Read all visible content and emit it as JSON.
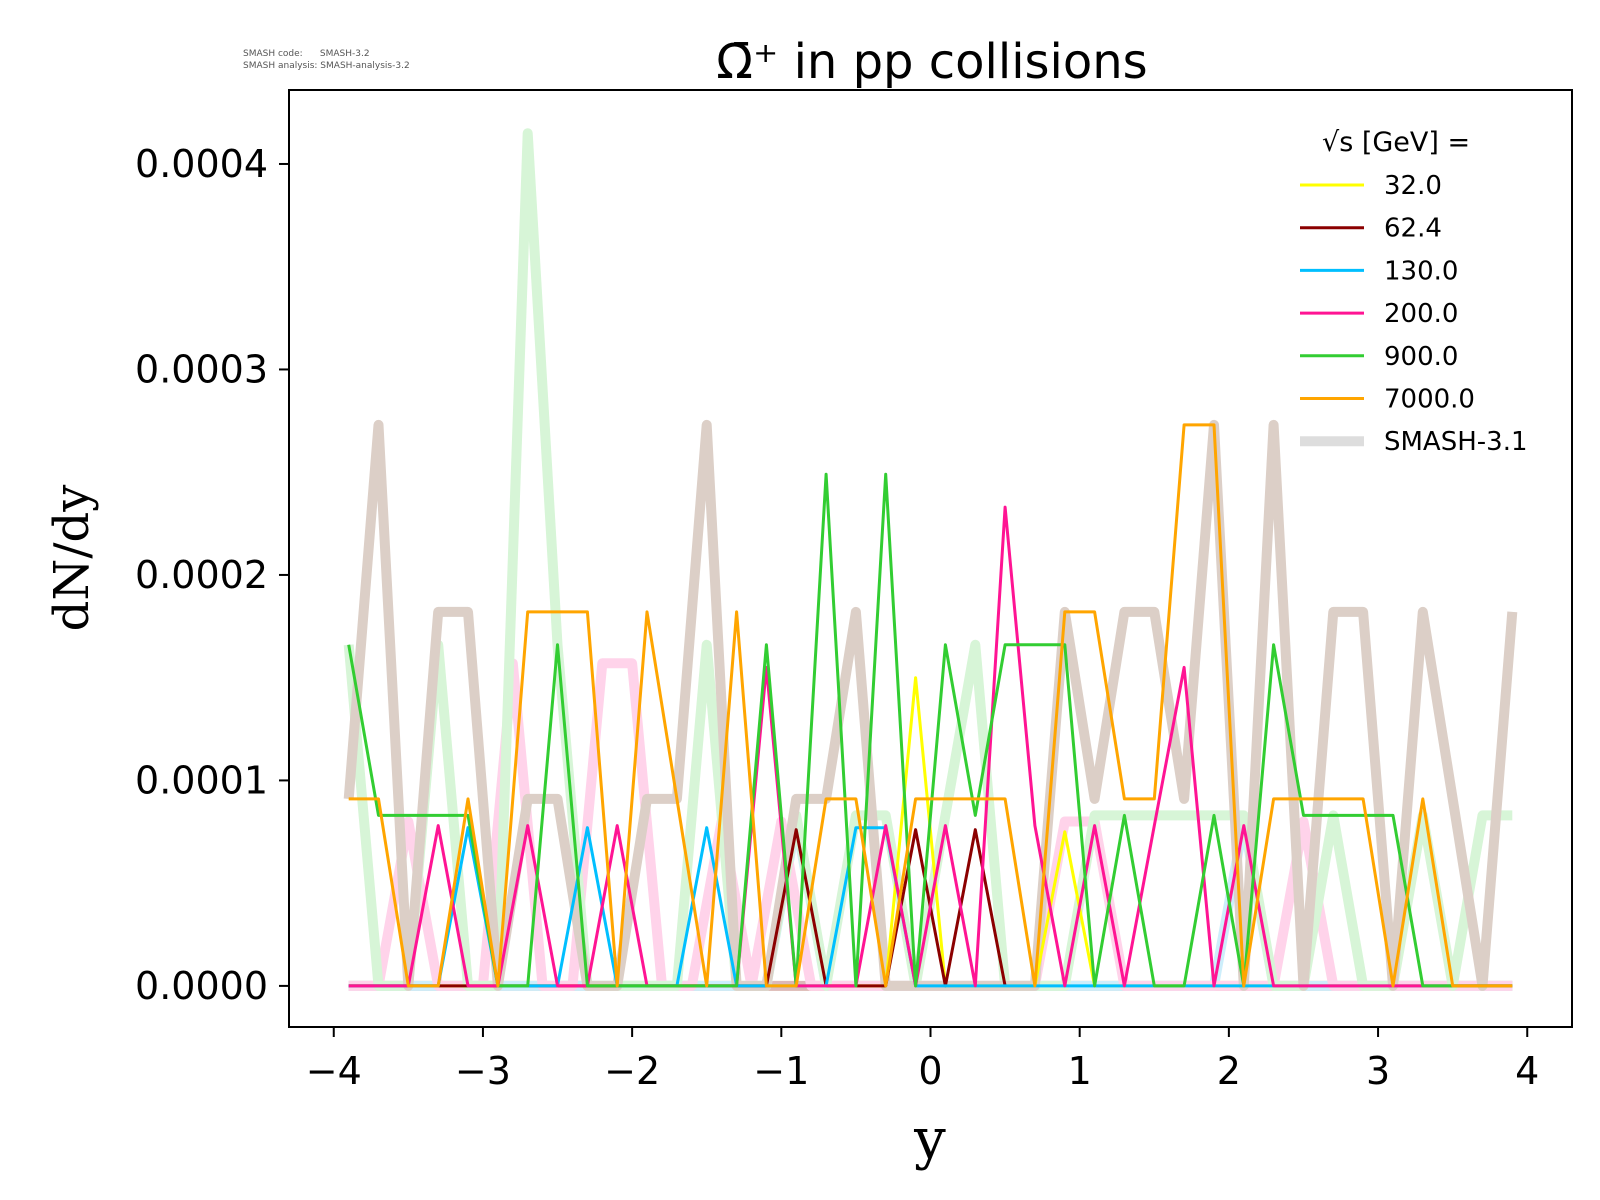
{
  "header": {
    "info_line_1": "SMASH code:      SMASH-3.2",
    "info_line_2": "SMASH analysis: SMASH-analysis-3.2"
  },
  "chart_data": {
    "type": "line",
    "title": "Ω̄⁺ in pp collisions",
    "xlabel": "y",
    "ylabel": "dN/dy",
    "xlim": [
      -4.3,
      4.3
    ],
    "ylim": [
      -2e-05,
      0.000436
    ],
    "xticks": [
      -4,
      -3,
      -2,
      -1,
      0,
      1,
      2,
      3,
      4
    ],
    "xtick_labels": [
      "−4",
      "−3",
      "−2",
      "−1",
      "0",
      "1",
      "2",
      "3",
      "4"
    ],
    "yticks": [
      0,
      0.0001,
      0.0002,
      0.0003,
      0.0004
    ],
    "ytick_labels": [
      "0.0000",
      "0.0001",
      "0.0002",
      "0.0003",
      "0.0004"
    ],
    "grid": false,
    "legend": {
      "title": "√s  [GeV] =",
      "placement": "top-right",
      "reference_label": "SMASH-3.1"
    },
    "x": [
      -3.9,
      -3.7,
      -3.5,
      -3.3,
      -3.1,
      -2.9,
      -2.7,
      -2.5,
      -2.3,
      -2.1,
      -1.9,
      -1.7,
      -1.5,
      -1.3,
      -1.1,
      -0.9,
      -0.7,
      -0.5,
      -0.3,
      -0.1,
      0.1,
      0.3,
      0.5,
      0.7,
      0.9,
      1.1,
      1.3,
      1.5,
      1.7,
      1.9,
      2.1,
      2.3,
      2.5,
      2.7,
      2.9,
      3.1,
      3.3,
      3.5,
      3.7,
      3.9
    ],
    "series": [
      {
        "name": "32.0",
        "color": "#ffff00",
        "x": [
          -3.9,
          -0.3,
          -0.1,
          0.1,
          0.7,
          0.9,
          1.1,
          3.9
        ],
        "values": [
          0,
          0,
          0.00015,
          0,
          0,
          7.5e-05,
          0,
          0
        ],
        "reference_color": "#fff5c0",
        "reference_x": [
          -3.9,
          3.9
        ],
        "reference_values": [
          0,
          0
        ]
      },
      {
        "name": "62.4",
        "color": "#8b0000",
        "x": [
          -3.9,
          -1.1,
          -0.9,
          -0.7,
          -0.5,
          -0.3,
          -0.1,
          0.1,
          0.3,
          0.5
        ],
        "values": [
          0,
          0,
          7.6e-05,
          0,
          0,
          0,
          7.6e-05,
          0,
          7.6e-05,
          0
        ],
        "reference_color": "#dcb8b8",
        "reference_x": [
          -3.9,
          3.9
        ],
        "reference_values": [
          0,
          0
        ]
      },
      {
        "name": "130.0",
        "color": "#00bfff",
        "x": [
          -3.9,
          -3.3,
          -3.1,
          -2.9,
          -2.5,
          -2.3,
          -2.1,
          -1.7,
          -1.5,
          -1.3,
          -0.7,
          -0.5,
          -0.3,
          -0.1,
          3.9
        ],
        "values": [
          0,
          0,
          7.7e-05,
          0,
          0,
          7.7e-05,
          0,
          0,
          7.7e-05,
          0,
          0,
          7.7e-05,
          7.7e-05,
          0,
          0
        ],
        "reference_color": "#cdeefb",
        "reference_x": [
          -3.9,
          -1.1,
          -0.9,
          -0.7,
          1.9,
          2.1,
          2.3,
          3.9
        ],
        "reference_values": [
          0,
          0,
          8e-05,
          0,
          0,
          8e-05,
          0,
          0
        ]
      },
      {
        "name": "200.0",
        "color": "#ff1493",
        "x": [
          -3.9,
          -3.5,
          -3.3,
          -3.1,
          -2.9,
          -2.7,
          -2.5,
          -2.3,
          -2.1,
          -1.9,
          -1.3,
          -1.1,
          -0.9,
          -0.7,
          -0.5,
          -0.3,
          -0.1,
          0.1,
          0.3,
          0.5,
          0.7,
          0.9,
          1.1,
          1.3,
          1.5,
          1.7,
          1.9,
          2.1,
          2.3,
          3.9
        ],
        "values": [
          0,
          0,
          7.8e-05,
          0,
          0,
          7.8e-05,
          0,
          0,
          7.8e-05,
          0,
          0,
          0.000155,
          0,
          0,
          0,
          7.8e-05,
          0,
          7.8e-05,
          0,
          0.000233,
          7.8e-05,
          0,
          7.8e-05,
          0,
          7.8e-05,
          0.000155,
          0,
          7.8e-05,
          0,
          0
        ],
        "reference_color": "#ffd3ea",
        "reference_x": [
          -3.9,
          -3.7,
          -3.5,
          -3.3,
          -3.0,
          -2.8,
          -2.6,
          -2.4,
          -2.2,
          -2.0,
          -1.8,
          -1.6,
          -1.4,
          -1.2,
          -1.0,
          -0.8,
          0.7,
          0.9,
          1.1,
          1.3,
          2.3,
          2.5,
          2.7,
          2.9,
          3.9
        ],
        "reference_values": [
          0,
          0,
          8e-05,
          0,
          0,
          0.000157,
          0,
          0,
          0.000157,
          0.000157,
          0,
          0,
          8e-05,
          0,
          8e-05,
          0,
          0,
          8e-05,
          8e-05,
          0,
          0,
          8e-05,
          0,
          0,
          0
        ]
      },
      {
        "name": "900.0",
        "color": "#32cd32",
        "x": [
          -3.9,
          -3.7,
          -3.5,
          -3.3,
          -3.1,
          -2.9,
          -2.7,
          -2.5,
          -2.3,
          -1.3,
          -1.1,
          -0.9,
          -0.7,
          -0.5,
          -0.3,
          -0.1,
          0.1,
          0.3,
          0.5,
          0.7,
          0.9,
          1.1,
          1.3,
          1.5,
          1.7,
          1.9,
          2.1,
          2.3,
          2.5,
          2.7,
          2.9,
          3.1,
          3.3,
          3.9
        ],
        "values": [
          0.000166,
          8.3e-05,
          8.3e-05,
          8.3e-05,
          8.3e-05,
          0,
          0,
          0.000166,
          0,
          0,
          0.000166,
          0,
          0.000249,
          0,
          0.000249,
          0,
          0.000166,
          8.3e-05,
          0.000166,
          0.000166,
          0.000166,
          0,
          8.3e-05,
          0,
          0,
          8.3e-05,
          0,
          0.000166,
          8.3e-05,
          8.3e-05,
          8.3e-05,
          8.3e-05,
          0,
          0
        ],
        "reference_color": "#d7f5d7",
        "reference_x": [
          -3.9,
          -3.7,
          -3.5,
          -3.3,
          -3.1,
          -2.9,
          -2.7,
          -2.5,
          -2.3,
          -2.1,
          -1.9,
          -1.7,
          -1.5,
          -1.3,
          -1.1,
          -0.9,
          -0.7,
          -0.5,
          -0.3,
          -0.1,
          0.1,
          0.3,
          0.5,
          0.7,
          0.9,
          1.1,
          1.3,
          1.5,
          1.7,
          1.9,
          2.1,
          2.3,
          2.5,
          2.7,
          2.9,
          3.1,
          3.3,
          3.5,
          3.7,
          3.9
        ],
        "reference_values": [
          0.000166,
          0,
          0,
          0.000166,
          0,
          0,
          0.000415,
          0.000166,
          0,
          0,
          0,
          0,
          0.000166,
          0,
          0,
          8.3e-05,
          0,
          8.3e-05,
          8.3e-05,
          0,
          8.3e-05,
          0.000166,
          0,
          0,
          0,
          8.3e-05,
          8.3e-05,
          8.3e-05,
          8.3e-05,
          8.3e-05,
          8.3e-05,
          0,
          0,
          8.3e-05,
          0,
          0,
          8.3e-05,
          0,
          8.3e-05,
          8.3e-05
        ]
      },
      {
        "name": "7000.0",
        "color": "#ffa500",
        "x": [
          -3.9,
          -3.7,
          -3.5,
          -3.3,
          -3.1,
          -2.9,
          -2.7,
          -2.5,
          -2.3,
          -2.1,
          -1.9,
          -1.7,
          -1.5,
          -1.3,
          -1.1,
          -0.9,
          -0.7,
          -0.5,
          -0.3,
          -0.1,
          0.1,
          0.3,
          0.5,
          0.7,
          0.9,
          1.1,
          1.3,
          1.5,
          1.7,
          1.9,
          2.1,
          2.3,
          2.5,
          2.7,
          2.9,
          3.1,
          3.3,
          3.5,
          3.7,
          3.9
        ],
        "values": [
          9.1e-05,
          9.1e-05,
          0,
          0,
          9.1e-05,
          0,
          0.000182,
          0.000182,
          0.000182,
          0,
          0.000182,
          9.1e-05,
          0,
          0.000182,
          0,
          0,
          9.1e-05,
          9.1e-05,
          0,
          9.1e-05,
          9.1e-05,
          9.1e-05,
          9.1e-05,
          0,
          0.000182,
          0.000182,
          9.1e-05,
          9.1e-05,
          0.000273,
          0.000273,
          0,
          9.1e-05,
          9.1e-05,
          9.1e-05,
          9.1e-05,
          0,
          9.1e-05,
          0,
          0,
          0
        ],
        "reference_color": "#dccfc7",
        "reference_x": [
          -3.9,
          -3.7,
          -3.5,
          -3.3,
          -3.1,
          -2.9,
          -2.7,
          -2.5,
          -2.3,
          -2.1,
          -1.9,
          -1.7,
          -1.5,
          -1.3,
          -1.1,
          -0.9,
          -0.7,
          -0.5,
          -0.3,
          -0.1,
          0.1,
          0.3,
          0.5,
          0.7,
          0.9,
          1.1,
          1.3,
          1.5,
          1.7,
          1.9,
          2.1,
          2.3,
          2.5,
          2.7,
          2.9,
          3.1,
          3.3,
          3.5,
          3.7,
          3.9
        ],
        "reference_values": [
          9.1e-05,
          0.000273,
          0,
          0.000182,
          0.000182,
          0,
          9.1e-05,
          9.1e-05,
          0,
          0,
          9.1e-05,
          9.1e-05,
          0.000273,
          0,
          0,
          9.1e-05,
          9.1e-05,
          0.000182,
          0,
          0,
          0,
          0,
          0,
          0,
          0.000182,
          9.1e-05,
          0.000182,
          0.000182,
          9.1e-05,
          0.000273,
          0,
          0.000273,
          0,
          0.000182,
          0.000182,
          0,
          0.000182,
          9.1e-05,
          0,
          0.000182
        ]
      }
    ]
  }
}
